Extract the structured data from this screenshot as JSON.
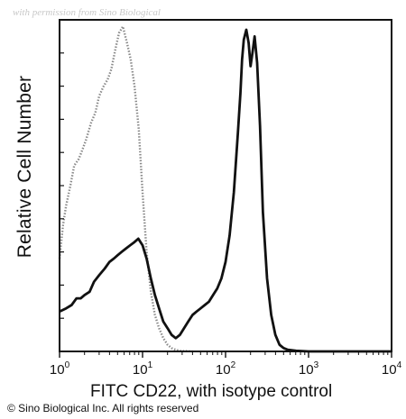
{
  "chart_data": {
    "type": "line",
    "watermark": "with permission from Sino Biological",
    "xlabel": "FITC CD22, with isotype control",
    "ylabel": "Relative Cell Number",
    "copyright": "© Sino Biological Inc. All rights reserved",
    "x_scale": "log",
    "xlim": [
      1,
      10000
    ],
    "ylim": [
      0,
      100
    ],
    "x_ticks": [
      {
        "base": "10",
        "exp": "0",
        "value": 1
      },
      {
        "base": "10",
        "exp": "1",
        "value": 10
      },
      {
        "base": "10",
        "exp": "2",
        "value": 100
      },
      {
        "base": "10",
        "exp": "3",
        "value": 1000
      },
      {
        "base": "10",
        "exp": "4",
        "value": 10000
      }
    ],
    "grid": false,
    "legend": "none",
    "series": [
      {
        "style": "dotted gray (isotype control)",
        "color": "#8a8a8a",
        "x": [
          1.0,
          1.1,
          1.2,
          1.35,
          1.5,
          1.7,
          1.9,
          2.1,
          2.4,
          2.7,
          3.0,
          3.4,
          3.8,
          4.2,
          4.7,
          5.2,
          5.8,
          6.5,
          7.2,
          8.0,
          9.0,
          10.0,
          11.2,
          12.6,
          14.1,
          15.8,
          17.8,
          20.0,
          22.4,
          25.1,
          28.2,
          31.6,
          35.5,
          40.0
        ],
        "y": [
          28,
          38,
          44,
          50,
          56,
          58,
          61,
          64,
          69,
          72,
          77,
          80,
          82,
          85,
          91,
          96,
          98,
          93,
          88,
          80,
          67,
          48,
          30,
          18,
          11,
          7,
          4,
          2,
          1,
          0.5,
          0.2,
          0.1,
          0.1,
          0
        ]
      },
      {
        "style": "solid black (CD22)",
        "color": "#111111",
        "x": [
          1.0,
          1.2,
          1.4,
          1.6,
          1.8,
          2.0,
          2.3,
          2.6,
          3.0,
          3.5,
          4.0,
          4.5,
          5.0,
          5.6,
          6.3,
          7.1,
          8.0,
          8.9,
          10.0,
          11.2,
          12.6,
          14.1,
          15.8,
          17.8,
          20.0,
          22.4,
          25.1,
          28.2,
          31.6,
          35.5,
          40.0,
          44.7,
          50.1,
          56.2,
          63.1,
          70.8,
          79.4,
          89.1,
          100,
          112,
          126,
          141,
          151,
          158,
          166,
          178,
          190,
          200,
          211,
          224,
          240,
          260,
          282,
          316,
          355,
          398,
          447,
          501,
          562,
          708,
          1000,
          2000,
          5000,
          10000
        ],
        "y": [
          12,
          13,
          14,
          16,
          16,
          17,
          18,
          21,
          23,
          25,
          27,
          28,
          29,
          30,
          31,
          32,
          33,
          34,
          32,
          28,
          22,
          17,
          13,
          9,
          7,
          5,
          4,
          5,
          7,
          9,
          11,
          12,
          13,
          14,
          15,
          17,
          19,
          22,
          27,
          35,
          48,
          66,
          78,
          88,
          94,
          97,
          93,
          86,
          90,
          95,
          87,
          68,
          42,
          22,
          11,
          5,
          2,
          1,
          0.5,
          0.2,
          0,
          0,
          0,
          0
        ]
      }
    ]
  }
}
